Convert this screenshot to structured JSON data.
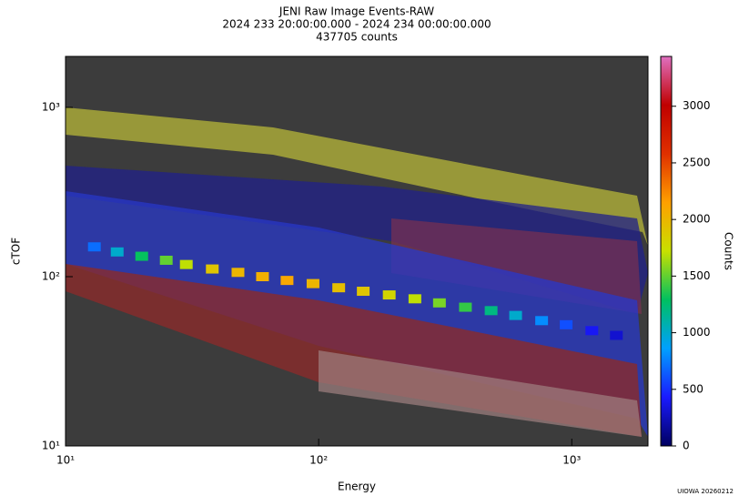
{
  "chart_data": {
    "type": "heatmap",
    "title": "JENI Raw Image Events-RAW",
    "subtitle": "2024 233 20:00:00.000 - 2024 234 00:00:00.000",
    "annotation": "437705 counts",
    "x_label": "Energy",
    "y_label": "cTOF",
    "colorbar_label": "Counts",
    "footer": "UIOWA 20260212",
    "x_log": true,
    "y_log": true,
    "xlim": [
      10,
      2000
    ],
    "ylim": [
      10,
      2000
    ],
    "xticks": [
      {
        "value": 10,
        "label": "10¹"
      },
      {
        "value": 100,
        "label": "10²"
      },
      {
        "value": 1000,
        "label": "10³"
      }
    ],
    "yticks": [
      {
        "value": 10,
        "label": "10¹"
      },
      {
        "value": 100,
        "label": "10²"
      },
      {
        "value": 1000,
        "label": "10³"
      }
    ],
    "zlim": [
      0,
      3440
    ],
    "zticks": [
      0,
      500,
      1000,
      1500,
      2000,
      2500,
      3000
    ],
    "colorscale": [
      "#000060",
      "#1a1aff",
      "#00a0ff",
      "#00c060",
      "#c8e000",
      "#ffa000",
      "#e03000",
      "#c00000",
      "#e070c0"
    ],
    "background": "#3c3c3c",
    "x": [
      13,
      16,
      20,
      25,
      30,
      38,
      48,
      60,
      75,
      95,
      120,
      150,
      190,
      240,
      300,
      380,
      480,
      600,
      760,
      950,
      1200,
      1500
    ],
    "y": [
      150,
      140,
      132,
      125,
      118,
      111,
      106,
      100,
      95,
      91,
      86,
      82,
      78,
      74,
      70,
      66,
      63,
      59,
      55,
      52,
      48,
      45
    ],
    "z": [
      700,
      1000,
      1300,
      1500,
      1700,
      1900,
      2000,
      2050,
      2100,
      2000,
      1950,
      1900,
      1800,
      1700,
      1550,
      1400,
      1200,
      1000,
      800,
      600,
      400,
      300
    ]
  }
}
